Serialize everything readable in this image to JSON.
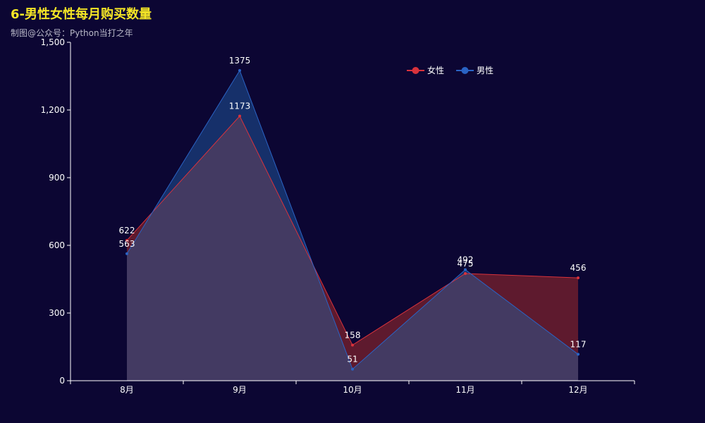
{
  "chart_data": {
    "type": "area",
    "title": "6-男性女性每月购买数量",
    "subtitle": "制图@公众号：Python当打之年",
    "categories": [
      "8月",
      "9月",
      "10月",
      "11月",
      "12月"
    ],
    "series": [
      {
        "name": "女性",
        "values": [
          622,
          1173,
          158,
          475,
          456
        ],
        "color": "#d9323c",
        "fill": "#5e1a2e"
      },
      {
        "name": "男性",
        "values": [
          563,
          1375,
          51,
          492,
          117
        ],
        "color": "#2a63c4",
        "fill": "#16306a"
      }
    ],
    "overlap_fill": "#433a62",
    "ylim": [
      0,
      1500
    ],
    "yticks": [
      0,
      300,
      600,
      900,
      1200,
      1500
    ],
    "ytick_labels": [
      "0",
      "300",
      "600",
      "900",
      "1,200",
      "1,500"
    ],
    "xlabel": "",
    "ylabel": "",
    "legend_position": "top-center",
    "grid": false
  }
}
